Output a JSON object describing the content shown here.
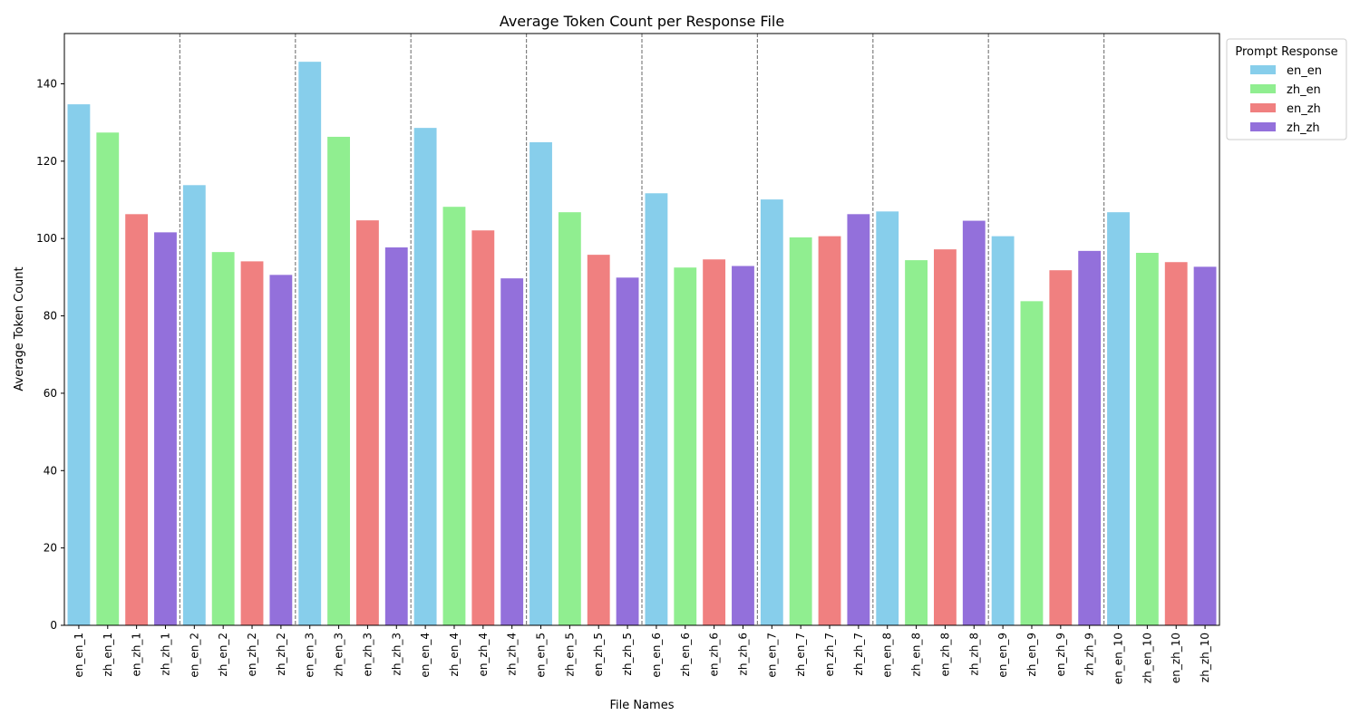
{
  "chart_data": {
    "type": "bar",
    "title": "Average Token Count per Response File",
    "xlabel": "File Names",
    "ylabel": "Average Token Count",
    "ylim": [
      0,
      153
    ],
    "yticks": [
      0,
      20,
      40,
      60,
      80,
      100,
      120,
      140
    ],
    "grid": false,
    "group_separators": "dashed vertical lines between file groups",
    "legend": {
      "title": "Prompt Response",
      "placement": "outside-top-right",
      "entries": [
        {
          "name": "en_en",
          "color": "#87CEEB"
        },
        {
          "name": "zh_en",
          "color": "#90EE90"
        },
        {
          "name": "en_zh",
          "color": "#F08080"
        },
        {
          "name": "zh_zh",
          "color": "#9370DB"
        }
      ]
    },
    "categories": [
      "en_en_1",
      "zh_en_1",
      "en_zh_1",
      "zh_zh_1",
      "en_en_2",
      "zh_en_2",
      "en_zh_2",
      "zh_zh_2",
      "en_en_3",
      "zh_en_3",
      "en_zh_3",
      "zh_zh_3",
      "en_en_4",
      "zh_en_4",
      "en_zh_4",
      "zh_zh_4",
      "en_en_5",
      "zh_en_5",
      "en_zh_5",
      "zh_zh_5",
      "en_en_6",
      "zh_en_6",
      "en_zh_6",
      "zh_zh_6",
      "en_en_7",
      "zh_en_7",
      "en_zh_7",
      "zh_zh_7",
      "en_en_8",
      "zh_en_8",
      "en_zh_8",
      "zh_zh_8",
      "en_en_9",
      "zh_en_9",
      "en_zh_9",
      "zh_zh_9",
      "en_en_10",
      "zh_en_10",
      "en_zh_10",
      "zh_zh_10"
    ],
    "values": [
      134.7,
      127.4,
      106.3,
      101.6,
      113.8,
      96.5,
      94.1,
      90.6,
      145.7,
      126.3,
      104.7,
      97.7,
      128.6,
      108.2,
      102.1,
      89.7,
      124.9,
      106.8,
      95.8,
      89.9,
      111.7,
      92.5,
      94.6,
      92.9,
      110.1,
      100.3,
      100.6,
      106.3,
      107.0,
      94.4,
      97.2,
      104.6,
      100.6,
      83.8,
      91.8,
      96.8,
      106.8,
      96.3,
      93.9,
      92.7
    ],
    "series_of_bar": [
      "en_en",
      "zh_en",
      "en_zh",
      "zh_zh",
      "en_en",
      "zh_en",
      "en_zh",
      "zh_zh",
      "en_en",
      "zh_en",
      "en_zh",
      "zh_zh",
      "en_en",
      "zh_en",
      "en_zh",
      "zh_zh",
      "en_en",
      "zh_en",
      "en_zh",
      "zh_zh",
      "en_en",
      "zh_en",
      "en_zh",
      "zh_zh",
      "en_en",
      "zh_en",
      "en_zh",
      "zh_zh",
      "en_en",
      "zh_en",
      "en_zh",
      "zh_zh",
      "en_en",
      "zh_en",
      "en_zh",
      "zh_zh",
      "en_en",
      "zh_en",
      "en_zh",
      "zh_zh"
    ]
  }
}
